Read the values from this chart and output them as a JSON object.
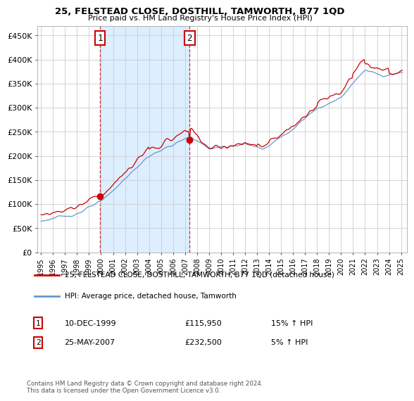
{
  "title": "25, FELSTEAD CLOSE, DOSTHILL, TAMWORTH, B77 1QD",
  "subtitle": "Price paid vs. HM Land Registry's House Price Index (HPI)",
  "legend_label1": "25, FELSTEAD CLOSE, DOSTHILL, TAMWORTH, B77 1QD (detached house)",
  "legend_label2": "HPI: Average price, detached house, Tamworth",
  "annotation1_label": "1",
  "annotation1_date": "10-DEC-1999",
  "annotation1_price": "£115,950",
  "annotation1_hpi": "15% ↑ HPI",
  "annotation2_label": "2",
  "annotation2_date": "25-MAY-2007",
  "annotation2_price": "£232,500",
  "annotation2_hpi": "5% ↑ HPI",
  "footer": "Contains HM Land Registry data © Crown copyright and database right 2024.\nThis data is licensed under the Open Government Licence v3.0.",
  "line1_color": "#cc0000",
  "line2_color": "#6699cc",
  "shade_color": "#ddeeff",
  "annotation_marker_color": "#cc0000",
  "grid_color": "#cccccc",
  "background_color": "#ffffff",
  "ylim": [
    0,
    470000
  ],
  "yticks": [
    0,
    50000,
    100000,
    150000,
    200000,
    250000,
    300000,
    350000,
    400000,
    450000
  ],
  "ytick_labels": [
    "£0",
    "£50K",
    "£100K",
    "£150K",
    "£200K",
    "£250K",
    "£300K",
    "£350K",
    "£400K",
    "£450K"
  ],
  "xlabel_years": [
    "1995",
    "1996",
    "1997",
    "1998",
    "1999",
    "2000",
    "2001",
    "2002",
    "2003",
    "2004",
    "2005",
    "2006",
    "2007",
    "2008",
    "2009",
    "2010",
    "2011",
    "2012",
    "2013",
    "2014",
    "2015",
    "2016",
    "2017",
    "2018",
    "2019",
    "2020",
    "2021",
    "2022",
    "2023",
    "2024",
    "2025"
  ],
  "purchase1_x": 1999.92,
  "purchase1_y": 115950,
  "purchase2_x": 2007.38,
  "purchase2_y": 232500,
  "ann1_x": 1999.92,
  "ann1_y": 445000,
  "ann2_x": 2007.38,
  "ann2_y": 445000,
  "xlim_left": 1994.7,
  "xlim_right": 2025.5
}
